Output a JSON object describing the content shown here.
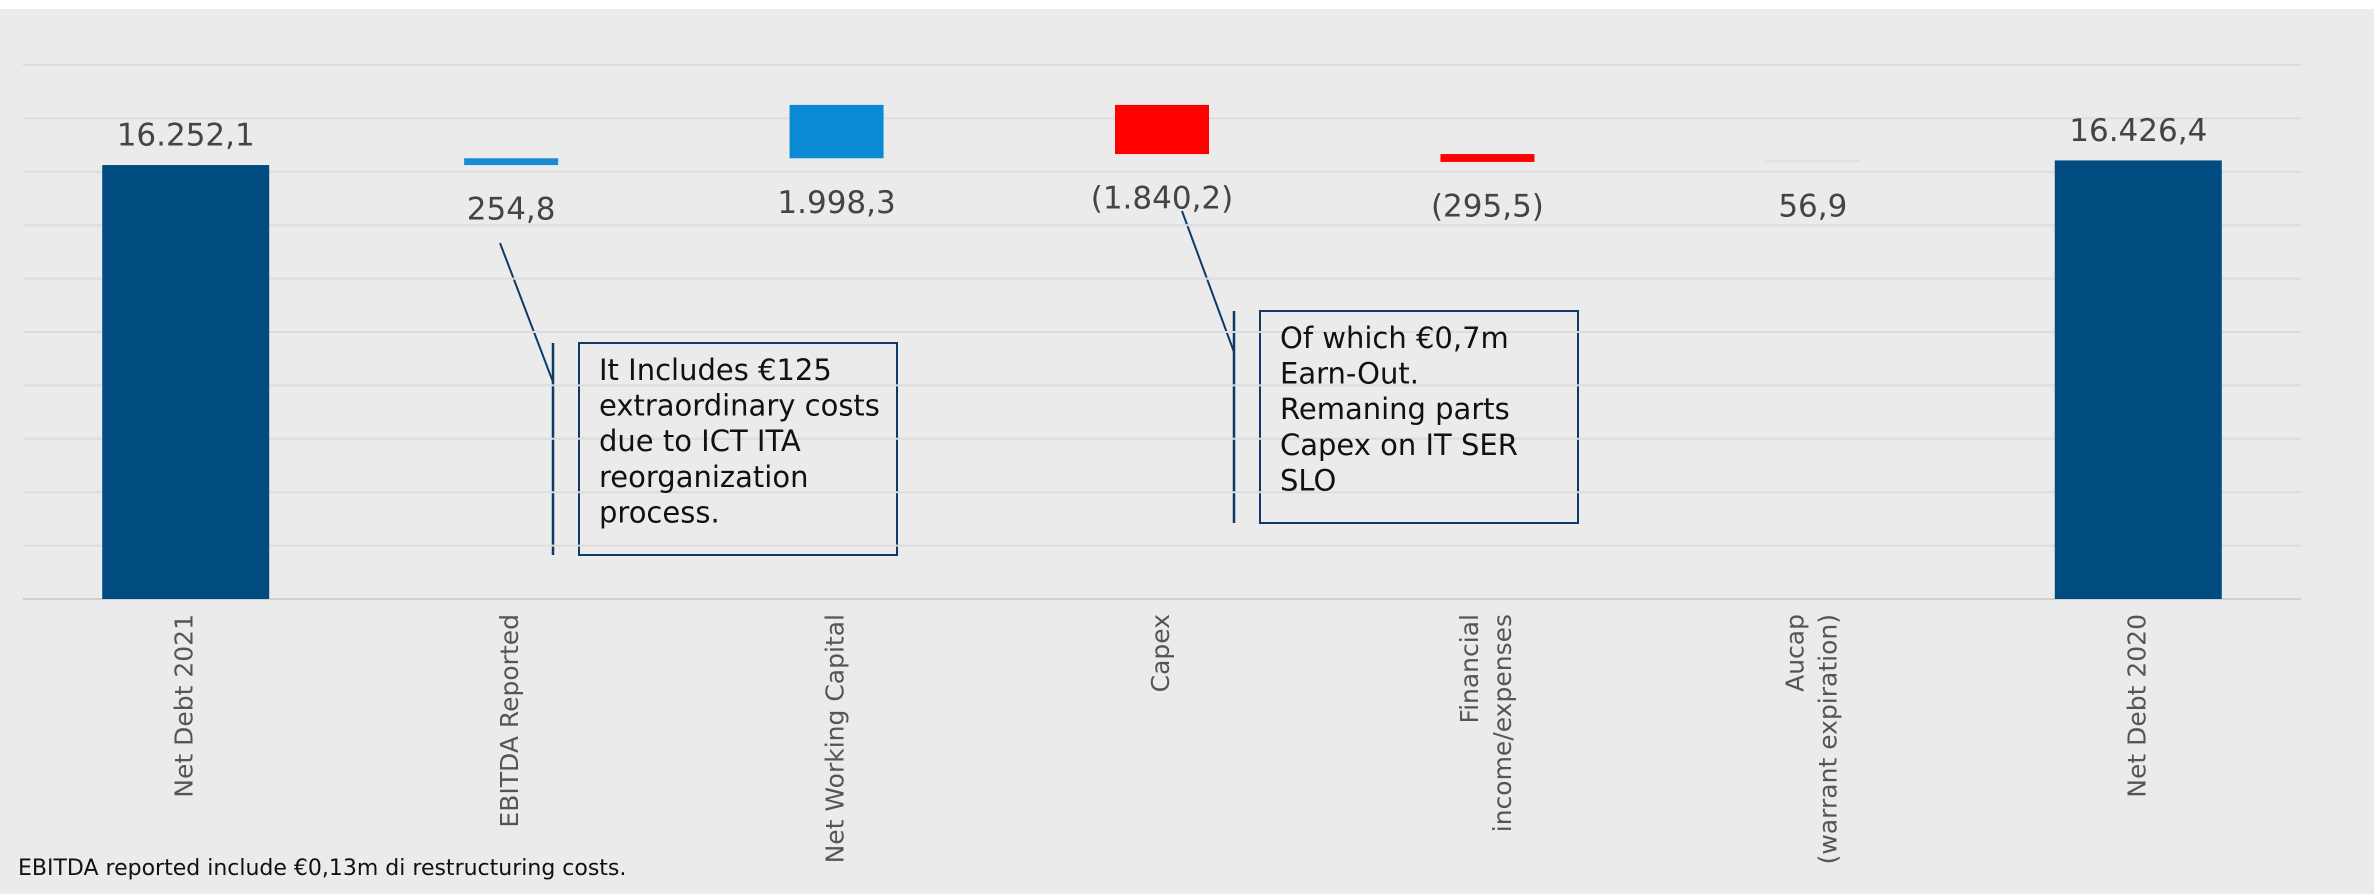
{
  "chart_data": {
    "type": "waterfall",
    "categories": [
      "Net Debt 2021",
      "EBITDA Reported",
      "Net Working Capital",
      "Capex",
      "Financial\nincome/expenses",
      "Aucap\n(warrant expiration)",
      "Net Debt 2020"
    ],
    "values": [
      16252.1,
      254.8,
      1998.3,
      -1840.2,
      -295.5,
      56.9,
      16426.4
    ],
    "value_labels": [
      "16.252,1",
      "254,8",
      "1.998,3",
      "(1.840,2)",
      "(295,5)",
      "56,9",
      "16.426,4"
    ],
    "colors": [
      "#004b7f",
      "#1a8ad4",
      "#0a8ad4",
      "#ff0000",
      "#ff0000",
      "#dcdcdc",
      "#004b7f"
    ],
    "ylim": [
      0,
      20000
    ],
    "yticks": [
      0,
      2000,
      4000,
      6000,
      8000,
      10000,
      12000,
      14000,
      16000,
      18000,
      20000
    ],
    "grid": true,
    "annotations": [
      {
        "lines": [
          "It Includes €125",
          "extraordinary costs",
          "due to ICT ITA",
          "reorganization",
          "process."
        ]
      },
      {
        "lines": [
          "Of which €0,7m",
          "Earn-Out.",
          "Remaning parts",
          "Capex on IT SER",
          "SLO"
        ]
      }
    ],
    "footnote": "EBITDA reported include €0,13m di restructuring costs."
  }
}
